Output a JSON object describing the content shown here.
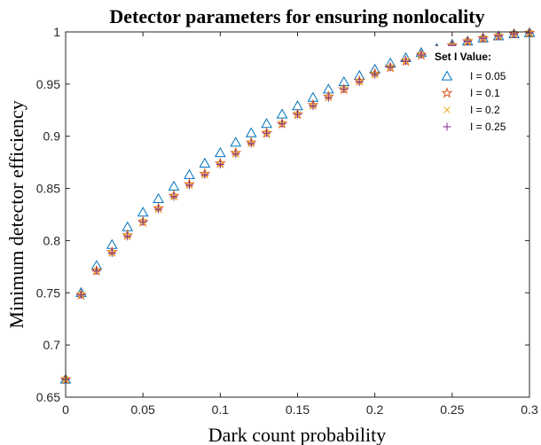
{
  "chart_data": {
    "type": "scatter",
    "title": "Detector parameters for ensuring nonlocality",
    "xlabel": "Dark count probability",
    "ylabel": "Minimum detector efficiency",
    "xlim": [
      0,
      0.3
    ],
    "ylim": [
      0.65,
      1
    ],
    "xticks": [
      "0",
      "0.05",
      "0.1",
      "0.15",
      "0.2",
      "0.25",
      "0.3"
    ],
    "yticks": [
      "0.65",
      "0.7",
      "0.75",
      "0.8",
      "0.85",
      "0.9",
      "0.95",
      "1"
    ],
    "grid": false,
    "legend": {
      "title": "Set I Value:",
      "placement": "top-right"
    },
    "x": [
      0,
      0.01,
      0.02,
      0.03,
      0.04,
      0.05,
      0.06,
      0.07,
      0.08,
      0.09,
      0.1,
      0.11,
      0.12,
      0.13,
      0.14,
      0.15,
      0.16,
      0.17,
      0.18,
      0.19,
      0.2,
      0.21,
      0.22,
      0.23,
      0.24,
      0.25,
      0.26,
      0.27,
      0.28,
      0.29,
      0.3
    ],
    "series": [
      {
        "name": "I = 0.05",
        "marker": "triangle",
        "color": "#0072BD",
        "values": [
          0.667,
          0.75,
          0.776,
          0.796,
          0.813,
          0.827,
          0.84,
          0.852,
          0.863,
          0.874,
          0.884,
          0.894,
          0.903,
          0.912,
          0.921,
          0.929,
          0.937,
          0.945,
          0.952,
          0.958,
          0.964,
          0.97,
          0.975,
          0.98,
          0.984,
          0.988,
          0.991,
          0.994,
          0.996,
          0.998,
          0.999
        ]
      },
      {
        "name": "I = 0.1",
        "marker": "pentagram",
        "color": "#D95319",
        "values": [
          0.667,
          0.748,
          0.771,
          0.789,
          0.805,
          0.818,
          0.831,
          0.843,
          0.854,
          0.864,
          0.874,
          0.884,
          0.894,
          0.903,
          0.912,
          0.921,
          0.93,
          0.938,
          0.945,
          0.953,
          0.96,
          0.966,
          0.972,
          0.978,
          0.983,
          0.987,
          0.991,
          0.994,
          0.996,
          0.998,
          0.999
        ]
      },
      {
        "name": "I = 0.2",
        "marker": "x",
        "color": "#EDB120",
        "values": [
          0.667,
          0.748,
          0.771,
          0.788,
          0.804,
          0.818,
          0.83,
          0.842,
          0.853,
          0.863,
          0.873,
          0.883,
          0.893,
          0.903,
          0.912,
          0.921,
          0.929,
          0.937,
          0.945,
          0.952,
          0.959,
          0.966,
          0.972,
          0.978,
          0.983,
          0.987,
          0.991,
          0.994,
          0.996,
          0.998,
          0.999
        ]
      },
      {
        "name": "I = 0.25",
        "marker": "plus",
        "color": "#7E2F8E",
        "values": [
          0.667,
          0.748,
          0.771,
          0.788,
          0.804,
          0.818,
          0.83,
          0.842,
          0.853,
          0.863,
          0.873,
          0.883,
          0.893,
          0.903,
          0.912,
          0.921,
          0.929,
          0.937,
          0.945,
          0.952,
          0.959,
          0.966,
          0.972,
          0.978,
          0.983,
          0.987,
          0.991,
          0.994,
          0.996,
          0.998,
          0.999
        ]
      }
    ]
  }
}
